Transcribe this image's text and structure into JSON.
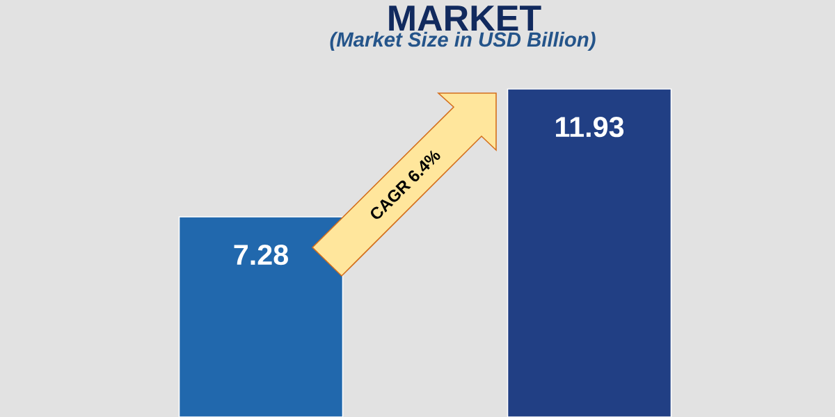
{
  "chart_data": {
    "type": "bar",
    "title": "MARKET",
    "subtitle": "(Market Size in USD Billion)",
    "categories": [
      null,
      null
    ],
    "values": [
      7.28,
      11.93
    ],
    "colors": [
      "#2168ad",
      "#213f84"
    ],
    "data_labels": true,
    "annotations": [
      "CAGR 6.4%"
    ]
  }
}
